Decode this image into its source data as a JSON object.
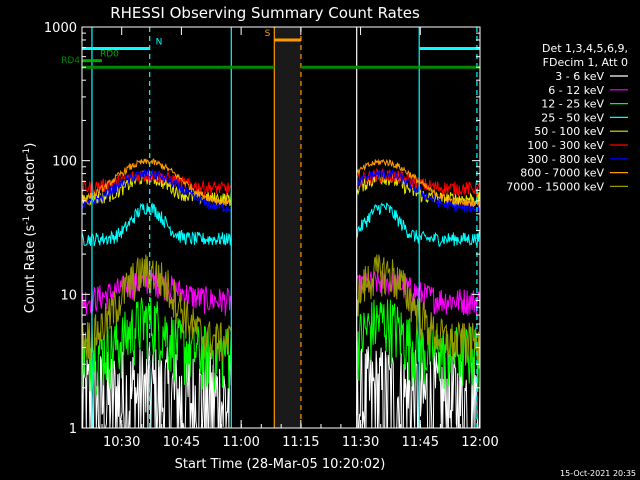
{
  "chart_data": {
    "type": "line",
    "title": "RHESSI Observing Summary Count Rates",
    "xlabel": "Start Time (28-Mar-05 10:20:02)",
    "ylabel_main": "Count Rate (s",
    "ylabel_sup1": "-1",
    "ylabel_mid": " detector",
    "ylabel_sup2": "-1",
    "ylabel_end": ")",
    "y_scale": "log",
    "ylim": [
      1,
      1000
    ],
    "xlim_minutes_after_start": [
      0,
      99.97
    ],
    "x_ticks": [
      {
        "label": "10:30",
        "value": 9.97
      },
      {
        "label": "10:45",
        "value": 24.97
      },
      {
        "label": "11:00",
        "value": 39.97
      },
      {
        "label": "11:15",
        "value": 54.97
      },
      {
        "label": "11:30",
        "value": 69.97
      },
      {
        "label": "11:45",
        "value": 84.97
      },
      {
        "label": "12:00",
        "value": 99.97
      }
    ],
    "y_ticks": [
      {
        "label": "1",
        "value": 1
      },
      {
        "label": "10",
        "value": 10
      },
      {
        "label": "100",
        "value": 100
      },
      {
        "label": "1000",
        "value": 1000
      }
    ],
    "legend_header": [
      "Det 1,3,4,5,6,9,",
      "FDecim 1, Att 0"
    ],
    "legend_placement": "right",
    "timestamp": "15-Oct-2021 20:35",
    "series": [
      {
        "name": "3 - 6 keV",
        "color": "#ffffff",
        "base": 1.6,
        "peak": 1.8,
        "width": 7,
        "noise": 0.45,
        "floor": 1,
        "rise": 0.0
      },
      {
        "name": "6 - 12 keV",
        "color": "#ff00ff",
        "base": 9,
        "peak": 12.5,
        "width": 9,
        "noise": 0.08,
        "floor": 1,
        "rise": 0.0
      },
      {
        "name": "12 - 25 keV",
        "color": "#00ff00",
        "base": 3.8,
        "peak": 6.5,
        "width": 6,
        "noise": 0.18,
        "floor": 1,
        "rise": 0.0
      },
      {
        "name": "25 - 50 keV",
        "color": "#00ffff",
        "base": 26,
        "peak": 45,
        "width": 5,
        "noise": 0.04,
        "floor": 1,
        "rise": 0.12
      },
      {
        "name": "50 - 100 keV",
        "color": "#e6e600",
        "base": 52,
        "peak": 75,
        "width": 7,
        "noise": 0.04,
        "floor": 1,
        "rise": 0.18
      },
      {
        "name": "100 - 300 keV",
        "color": "#ff0000",
        "base": 62,
        "peak": 78,
        "width": 9,
        "noise": 0.04,
        "floor": 1,
        "rise": 0.25
      },
      {
        "name": "300 - 800 keV",
        "color": "#0000ff",
        "base": 44,
        "peak": 80,
        "width": 10,
        "noise": 0.03,
        "floor": 1,
        "rise": 0.3
      },
      {
        "name": "800 - 7000 keV",
        "color": "#ff9900",
        "base": 48,
        "peak": 98,
        "width": 10,
        "noise": 0.02,
        "floor": 1,
        "rise": 0.3
      },
      {
        "name": "7000 - 15000 keV",
        "color": "#999900",
        "base": 4.5,
        "peak": 15,
        "width": 8,
        "noise": 0.12,
        "floor": 1,
        "rise": 0.0
      }
    ],
    "data_segments_minutes": [
      [
        0,
        37.5
      ],
      [
        69,
        99.97
      ]
    ],
    "peak_times_minutes": [
      16.5,
      75.5
    ],
    "saa_region_minutes": [
      48.3,
      55.0
    ],
    "vertical_markers": [
      {
        "value": 2.5,
        "color": "#00ffff",
        "dashed": false
      },
      {
        "value": 17,
        "color": "#00ffff",
        "dashed": true
      },
      {
        "value": 37.5,
        "color": "#00ffff",
        "dashed": false
      },
      {
        "value": 48.3,
        "color": "#ff9900",
        "dashed": false
      },
      {
        "value": 55.0,
        "color": "#ff9900",
        "dashed": true
      },
      {
        "value": 69,
        "color": "#ffffff",
        "dashed": false
      },
      {
        "value": 84.7,
        "color": "#00ffff",
        "dashed": false
      },
      {
        "value": 99.2,
        "color": "#00ffff",
        "dashed": true
      }
    ],
    "flag_bars": [
      {
        "label": "N",
        "color": "#00ffff",
        "level": 690,
        "ranges": [
          [
            0,
            17
          ],
          [
            84.7,
            100
          ]
        ]
      },
      {
        "label": "S",
        "color": "#ff9900",
        "level": 800,
        "ranges": [
          [
            48.3,
            55.0
          ]
        ]
      },
      {
        "label": "RD0",
        "color": "#00aa00",
        "level": 560,
        "ranges": [
          [
            0,
            2.5
          ],
          [
            2.5,
            5
          ]
        ]
      },
      {
        "label": "RD4",
        "color": "#008800",
        "level": 500,
        "ranges": [
          [
            0,
            1.5
          ],
          [
            1.5,
            35
          ],
          [
            35,
            48.3
          ],
          [
            55,
            84.7
          ],
          [
            84.7,
            100
          ]
        ]
      }
    ]
  }
}
